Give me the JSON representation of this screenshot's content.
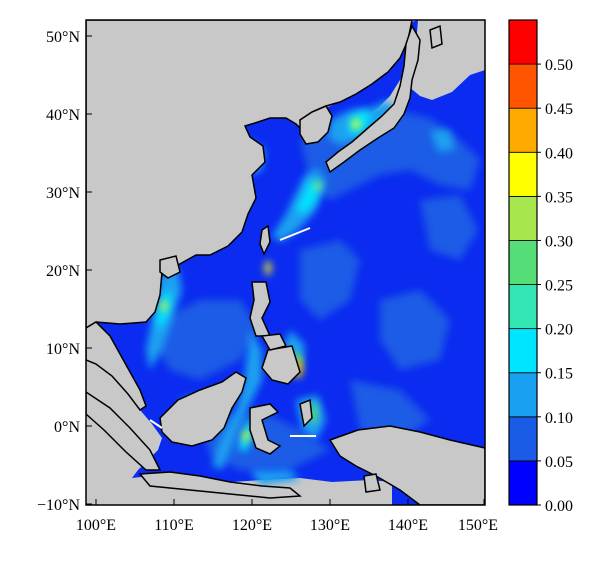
{
  "map": {
    "lat_labels": [
      "50°N",
      "40°N",
      "30°N",
      "20°N",
      "10°N",
      "0°N",
      "−10°N"
    ],
    "lon_labels": [
      "100°E",
      "110°E",
      "120°E",
      "130°E",
      "140°E",
      "150°E"
    ]
  },
  "colorbar": {
    "labels": [
      "0.50",
      "0.45",
      "0.40",
      "0.35",
      "0.30",
      "0.25",
      "0.20",
      "0.15",
      "0.10",
      "0.05",
      "0.00"
    ],
    "levels": [
      0.0,
      0.05,
      0.1,
      0.15,
      0.2,
      0.25,
      0.3,
      0.35,
      0.4,
      0.45,
      0.5,
      0.55
    ],
    "colors": [
      "#0000ff",
      "#1a5ce6",
      "#1aa0f0",
      "#00e5ff",
      "#33e6b3",
      "#55dd77",
      "#a8e64d",
      "#ffff00",
      "#ffaa00",
      "#ff5500",
      "#ff0000"
    ]
  },
  "colors": {
    "land": "#c8c8c8",
    "ocean_base": "#0b2bf0",
    "coast": "#000000",
    "frame": "#000000"
  }
}
